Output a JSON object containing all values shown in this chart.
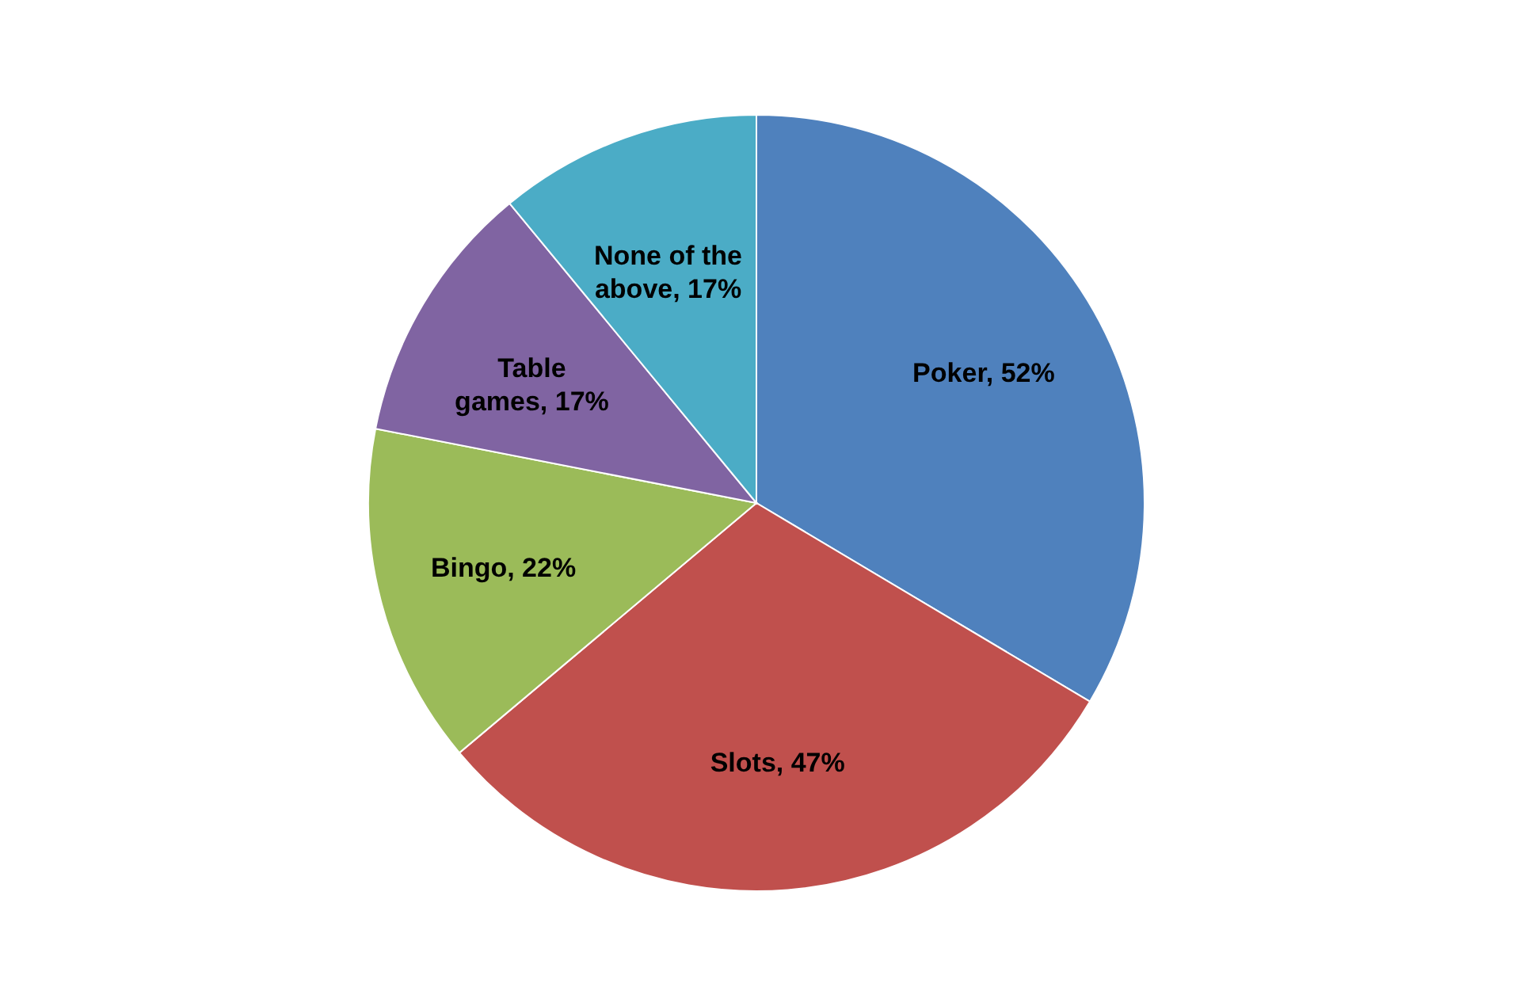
{
  "chart_data": {
    "type": "pie",
    "categories": [
      "Poker",
      "Slots",
      "Bingo",
      "Table games",
      "None of the above"
    ],
    "values": [
      52,
      47,
      22,
      17,
      17
    ],
    "value_labels": [
      "52%",
      "47%",
      "22%",
      "17%",
      "17%"
    ],
    "colors": [
      "#4f81bd",
      "#c0504d",
      "#9bbb59",
      "#8064a2",
      "#4bacc6"
    ],
    "legend": false
  }
}
